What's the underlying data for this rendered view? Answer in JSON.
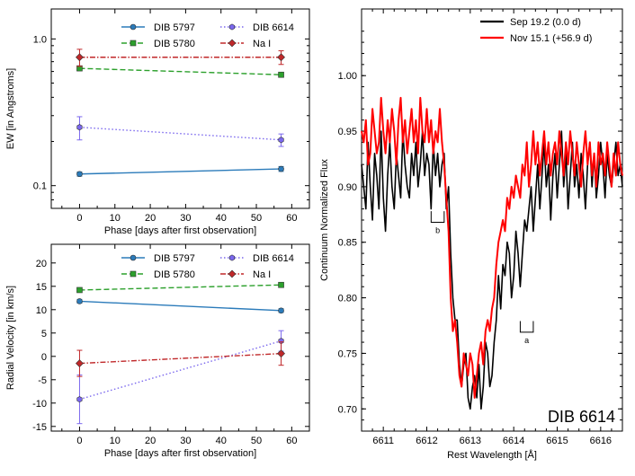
{
  "colors": {
    "dib5797": "#2b7bba",
    "dib5780": "#2ca02c",
    "dib6614": "#7b68ee",
    "nai": "#c0282a",
    "sep": "#000000",
    "nov": "#ff0000"
  },
  "chart_data": [
    {
      "id": "ew",
      "type": "line",
      "xlabel": "Phase [days after first observation]",
      "ylabel": "EW [in Angstroms]",
      "xlim": [
        -8,
        65
      ],
      "ylim": [
        0.07,
        1.6
      ],
      "yscale": "log",
      "xticks": [
        "0",
        "10",
        "20",
        "30",
        "40",
        "50",
        "60"
      ],
      "yticks": [
        "0.1",
        "1.0"
      ],
      "legend": [
        "DIB 5797",
        "DIB 5780",
        "DIB 6614",
        "Na I"
      ],
      "series": [
        {
          "name": "DIB 5797",
          "x": [
            0,
            57
          ],
          "y": [
            0.12,
            0.13
          ],
          "err": [
            0.004,
            0.005
          ]
        },
        {
          "name": "DIB 5780",
          "x": [
            0,
            57
          ],
          "y": [
            0.63,
            0.57
          ],
          "err": [
            0.02,
            0.02
          ]
        },
        {
          "name": "DIB 6614",
          "x": [
            0,
            57
          ],
          "y": [
            0.25,
            0.205
          ],
          "err": [
            0.045,
            0.02
          ]
        },
        {
          "name": "Na I",
          "x": [
            0,
            57
          ],
          "y": [
            0.75,
            0.75
          ],
          "err": [
            0.1,
            0.08
          ]
        }
      ]
    },
    {
      "id": "rv",
      "type": "line",
      "xlabel": "Phase [days after first observation]",
      "ylabel": "Radial Velocity [in km/s]",
      "xlim": [
        -8,
        65
      ],
      "ylim": [
        -16,
        24
      ],
      "xticks": [
        "0",
        "10",
        "20",
        "30",
        "40",
        "50",
        "60"
      ],
      "yticks": [
        "-15",
        "-10",
        "-5",
        "0",
        "5",
        "10",
        "15",
        "20"
      ],
      "legend": [
        "DIB 5797",
        "DIB 5780",
        "DIB 6614",
        "Na I"
      ],
      "series": [
        {
          "name": "DIB 5797",
          "x": [
            0,
            57
          ],
          "y": [
            11.8,
            9.8
          ],
          "err": [
            0.4,
            0.4
          ]
        },
        {
          "name": "DIB 5780",
          "x": [
            0,
            57
          ],
          "y": [
            14.2,
            15.3
          ],
          "err": [
            0.3,
            0.3
          ]
        },
        {
          "name": "DIB 6614",
          "x": [
            0,
            57
          ],
          "y": [
            -9.2,
            3.3
          ],
          "err": [
            5.2,
            2.2
          ]
        },
        {
          "name": "Na I",
          "x": [
            0,
            57
          ],
          "y": [
            -1.5,
            0.6
          ],
          "err": [
            2.8,
            2.5
          ]
        }
      ]
    },
    {
      "id": "spectrum",
      "type": "line",
      "title": "DIB 6614",
      "xlabel": "Rest Wavelength [Å]",
      "ylabel": "Continuum Normalized Flux",
      "xlim": [
        6610.5,
        6616.5
      ],
      "ylim": [
        0.68,
        1.06
      ],
      "xticks": [
        "6611",
        "6612",
        "6613",
        "6614",
        "6615",
        "6616"
      ],
      "yticks": [
        "0.70",
        "0.75",
        "0.80",
        "0.85",
        "0.90",
        "0.95",
        "1.00"
      ],
      "annotations": [
        "b",
        "a"
      ],
      "series": [
        {
          "name": "Sep 19.2 (0.0 d)",
          "x": [
            6610.5,
            6610.55,
            6610.6,
            6610.65,
            6610.7,
            6610.75,
            6610.8,
            6610.85,
            6610.9,
            6610.95,
            6611.0,
            6611.05,
            6611.1,
            6611.15,
            6611.2,
            6611.25,
            6611.3,
            6611.35,
            6611.4,
            6611.45,
            6611.5,
            6611.55,
            6611.6,
            6611.65,
            6611.7,
            6611.75,
            6611.8,
            6611.85,
            6611.9,
            6611.95,
            6612.0,
            6612.05,
            6612.1,
            6612.15,
            6612.2,
            6612.25,
            6612.3,
            6612.35,
            6612.4,
            6612.45,
            6612.5,
            6612.55,
            6612.6,
            6612.65,
            6612.7,
            6612.75,
            6612.8,
            6612.85,
            6612.9,
            6612.95,
            6613.0,
            6613.05,
            6613.1,
            6613.15,
            6613.2,
            6613.25,
            6613.3,
            6613.35,
            6613.4,
            6613.45,
            6613.5,
            6613.55,
            6613.6,
            6613.65,
            6613.7,
            6613.75,
            6613.8,
            6613.85,
            6613.9,
            6613.95,
            6614.0,
            6614.05,
            6614.1,
            6614.15,
            6614.2,
            6614.25,
            6614.3,
            6614.35,
            6614.4,
            6614.45,
            6614.5,
            6614.55,
            6614.6,
            6614.65,
            6614.7,
            6614.75,
            6614.8,
            6614.85,
            6614.9,
            6614.95,
            6615.0,
            6615.05,
            6615.1,
            6615.15,
            6615.2,
            6615.25,
            6615.3,
            6615.35,
            6615.4,
            6615.45,
            6615.5,
            6615.55,
            6615.6,
            6615.65,
            6615.7,
            6615.75,
            6615.8,
            6615.85,
            6615.9,
            6615.95,
            6616.0,
            6616.05,
            6616.1,
            6616.15,
            6616.2,
            6616.25,
            6616.3,
            6616.35,
            6616.4,
            6616.45,
            6616.5
          ],
          "y": [
            0.92,
            0.9,
            0.88,
            0.94,
            0.9,
            0.87,
            0.93,
            0.91,
            0.88,
            0.95,
            0.89,
            0.86,
            0.91,
            0.94,
            0.9,
            0.88,
            0.93,
            0.91,
            0.89,
            0.95,
            0.92,
            0.9,
            0.89,
            0.93,
            0.91,
            0.94,
            0.9,
            0.92,
            0.95,
            0.91,
            0.93,
            0.92,
            0.88,
            0.94,
            0.91,
            0.93,
            0.9,
            0.92,
            0.93,
            0.88,
            0.9,
            0.84,
            0.8,
            0.78,
            0.78,
            0.74,
            0.72,
            0.74,
            0.75,
            0.71,
            0.7,
            0.72,
            0.73,
            0.71,
            0.74,
            0.7,
            0.72,
            0.76,
            0.75,
            0.72,
            0.73,
            0.76,
            0.78,
            0.82,
            0.79,
            0.83,
            0.82,
            0.85,
            0.84,
            0.8,
            0.82,
            0.86,
            0.84,
            0.81,
            0.84,
            0.87,
            0.86,
            0.88,
            0.9,
            0.86,
            0.89,
            0.92,
            0.88,
            0.91,
            0.94,
            0.9,
            0.92,
            0.87,
            0.91,
            0.93,
            0.89,
            0.92,
            0.95,
            0.9,
            0.93,
            0.88,
            0.91,
            0.94,
            0.9,
            0.92,
            0.89,
            0.93,
            0.91,
            0.88,
            0.92,
            0.94,
            0.9,
            0.93,
            0.89,
            0.91,
            0.94,
            0.92,
            0.89,
            0.93,
            0.91,
            0.9,
            0.92,
            0.94,
            0.91,
            0.92,
            0.9
          ]
        },
        {
          "name": "Nov 15.1 (+56.9 d)",
          "x": [
            6610.5,
            6610.55,
            6610.6,
            6610.65,
            6610.7,
            6610.75,
            6610.8,
            6610.85,
            6610.9,
            6610.95,
            6611.0,
            6611.05,
            6611.1,
            6611.15,
            6611.2,
            6611.25,
            6611.3,
            6611.35,
            6611.4,
            6611.45,
            6611.5,
            6611.55,
            6611.6,
            6611.65,
            6611.7,
            6611.75,
            6611.8,
            6611.85,
            6611.9,
            6611.95,
            6612.0,
            6612.05,
            6612.1,
            6612.15,
            6612.2,
            6612.25,
            6612.3,
            6612.35,
            6612.4,
            6612.45,
            6612.5,
            6612.55,
            6612.6,
            6612.65,
            6612.7,
            6612.75,
            6612.8,
            6612.85,
            6612.9,
            6612.95,
            6613.0,
            6613.05,
            6613.1,
            6613.15,
            6613.2,
            6613.25,
            6613.3,
            6613.35,
            6613.4,
            6613.45,
            6613.5,
            6613.55,
            6613.6,
            6613.65,
            6613.7,
            6613.75,
            6613.8,
            6613.85,
            6613.9,
            6613.95,
            6614.0,
            6614.05,
            6614.1,
            6614.15,
            6614.2,
            6614.25,
            6614.3,
            6614.35,
            6614.4,
            6614.45,
            6614.5,
            6614.55,
            6614.6,
            6614.65,
            6614.7,
            6614.75,
            6614.8,
            6614.85,
            6614.9,
            6614.95,
            6615.0,
            6615.05,
            6615.1,
            6615.15,
            6615.2,
            6615.25,
            6615.3,
            6615.35,
            6615.4,
            6615.45,
            6615.5,
            6615.55,
            6615.6,
            6615.65,
            6615.7,
            6615.75,
            6615.8,
            6615.85,
            6615.9,
            6615.95,
            6616.0,
            6616.05,
            6616.1,
            6616.15,
            6616.2,
            6616.25,
            6616.3,
            6616.35,
            6616.4,
            6616.45,
            6616.5
          ],
          "y": [
            0.95,
            0.94,
            0.96,
            0.92,
            0.93,
            0.97,
            0.95,
            0.93,
            0.94,
            0.98,
            0.95,
            0.93,
            0.96,
            0.94,
            0.97,
            0.95,
            0.92,
            0.96,
            0.98,
            0.94,
            0.96,
            0.93,
            0.95,
            0.97,
            0.94,
            0.96,
            0.93,
            0.98,
            0.95,
            0.94,
            0.97,
            0.94,
            0.96,
            0.93,
            0.95,
            0.94,
            0.97,
            0.94,
            0.92,
            0.89,
            0.86,
            0.8,
            0.77,
            0.78,
            0.76,
            0.73,
            0.72,
            0.75,
            0.74,
            0.73,
            0.75,
            0.74,
            0.71,
            0.73,
            0.75,
            0.76,
            0.74,
            0.77,
            0.78,
            0.77,
            0.79,
            0.8,
            0.83,
            0.85,
            0.86,
            0.87,
            0.86,
            0.89,
            0.88,
            0.9,
            0.89,
            0.91,
            0.9,
            0.89,
            0.92,
            0.91,
            0.94,
            0.9,
            0.92,
            0.95,
            0.92,
            0.94,
            0.91,
            0.93,
            0.95,
            0.92,
            0.94,
            0.91,
            0.93,
            0.94,
            0.92,
            0.95,
            0.93,
            0.91,
            0.94,
            0.92,
            0.95,
            0.93,
            0.91,
            0.94,
            0.92,
            0.9,
            0.93,
            0.95,
            0.92,
            0.94,
            0.91,
            0.93,
            0.9,
            0.94,
            0.92,
            0.93,
            0.91,
            0.94,
            0.92,
            0.9,
            0.93,
            0.91,
            0.94,
            0.92,
            0.91
          ]
        }
      ]
    }
  ]
}
